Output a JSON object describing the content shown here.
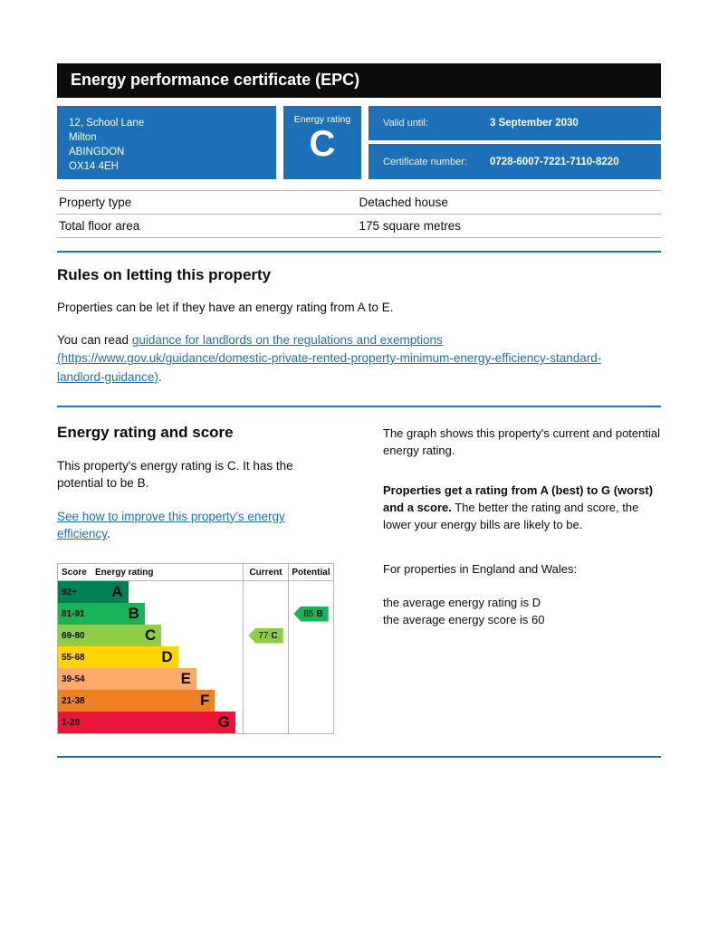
{
  "header": {
    "title": "Energy performance certificate (EPC)"
  },
  "summary": {
    "address_lines": [
      "12, School Lane",
      "Milton",
      "ABINGDON",
      "OX14 4EH"
    ],
    "energy_rating_label": "Energy rating",
    "energy_rating_letter": "C",
    "valid_until_label": "Valid until:",
    "valid_until_value": "3 September 2030",
    "certificate_number_label": "Certificate number:",
    "certificate_number_value": "0728-6007-7221-7110-8220"
  },
  "property_details": {
    "rows": [
      {
        "label": "Property type",
        "value": "Detached house"
      },
      {
        "label": "Total floor area",
        "value": "175 square metres"
      }
    ]
  },
  "rules": {
    "heading": "Rules on letting this property",
    "intro": "Properties can be let if they have an energy rating from A to E.",
    "read_prefix": "You can read ",
    "link_text": "guidance for landlords on the regulations and exemptions (https://www.gov.uk/guidance/domestic-private-rented-property-minimum-energy-efficiency-standard-landlord-guidance)",
    "read_suffix": "."
  },
  "rating_section": {
    "heading": "Energy rating and score",
    "summary_text": "This property's energy rating is C. It has the potential to be B.",
    "improve_link_text": "See how to improve this property's energy efficiency",
    "improve_link_suffix": ".",
    "graph_intro": "The graph shows this property's current and potential energy rating.",
    "explain_bold": "Properties get a rating from A (best) to G (worst) and a score.",
    "explain_rest": " The better the rating and score, the lower your energy bills are likely to be.",
    "england_wales_intro": "For properties in England and Wales:",
    "average_rating_line": "the average energy rating is D",
    "average_score_line": "the average energy score is 60"
  },
  "chart_data": {
    "type": "epc-energy-rating-bands",
    "headers": {
      "score": "Score",
      "rating": "Energy rating",
      "current": "Current",
      "potential": "Potential"
    },
    "bands": [
      {
        "score": "92+",
        "letter": "A",
        "color": "#008054",
        "width_pct": 38
      },
      {
        "score": "81-91",
        "letter": "B",
        "color": "#19b459",
        "width_pct": 47
      },
      {
        "score": "69-80",
        "letter": "C",
        "color": "#8dce46",
        "width_pct": 56
      },
      {
        "score": "55-68",
        "letter": "D",
        "color": "#ffd500",
        "width_pct": 65
      },
      {
        "score": "39-54",
        "letter": "E",
        "color": "#fcaa65",
        "width_pct": 75
      },
      {
        "score": "21-38",
        "letter": "F",
        "color": "#ef8023",
        "width_pct": 85
      },
      {
        "score": "1-20",
        "letter": "G",
        "color": "#e9153b",
        "width_pct": 96
      }
    ],
    "current": {
      "value": 77,
      "letter": "C",
      "color": "#8dce46",
      "band_index": 2
    },
    "potential": {
      "value": 85,
      "letter": "B",
      "color": "#19b459",
      "band_index": 1
    }
  },
  "colors": {
    "brand_blue": "#1d70b8",
    "header_black": "#0b0c0c",
    "border_grey": "#b1b4b6"
  }
}
